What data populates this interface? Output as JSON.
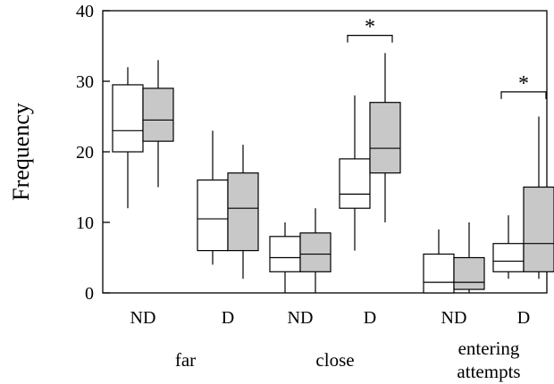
{
  "chart_data": {
    "type": "box",
    "title": "",
    "xlabel": "",
    "ylabel": "Frequency",
    "ylim": [
      0,
      40
    ],
    "yticks": [
      0,
      10,
      20,
      30,
      40
    ],
    "grid": false,
    "legend": "none",
    "fills": {
      "white": "#ffffff",
      "gray": "#c8c8c8"
    },
    "groups": [
      {
        "label_lines": [
          "far"
        ],
        "conditions": [
          {
            "label": "ND",
            "boxes": [
              {
                "fill": "white",
                "min": 12,
                "q1": 20,
                "median": 23,
                "q3": 29.5,
                "max": 32
              },
              {
                "fill": "gray",
                "min": 15,
                "q1": 21.5,
                "median": 24.5,
                "q3": 29,
                "max": 33
              }
            ]
          },
          {
            "label": "D",
            "boxes": [
              {
                "fill": "white",
                "min": 4,
                "q1": 6,
                "median": 10.5,
                "q3": 16,
                "max": 23
              },
              {
                "fill": "gray",
                "min": 2,
                "q1": 6,
                "median": 12,
                "q3": 17,
                "max": 21
              }
            ]
          }
        ]
      },
      {
        "label_lines": [
          "close"
        ],
        "conditions": [
          {
            "label": "ND",
            "boxes": [
              {
                "fill": "white",
                "min": 0,
                "q1": 3,
                "median": 5,
                "q3": 8,
                "max": 10
              },
              {
                "fill": "gray",
                "min": 0,
                "q1": 3,
                "median": 5.5,
                "q3": 8.5,
                "max": 12
              }
            ]
          },
          {
            "label": "D",
            "boxes": [
              {
                "fill": "white",
                "min": 6,
                "q1": 12,
                "median": 14,
                "q3": 19,
                "max": 28
              },
              {
                "fill": "gray",
                "min": 10,
                "q1": 17,
                "median": 20.5,
                "q3": 27,
                "max": 34
              }
            ],
            "significance": {
              "symbol": "*",
              "bracket_y": 36.5
            }
          }
        ]
      },
      {
        "label_lines": [
          "entering",
          "attempts"
        ],
        "conditions": [
          {
            "label": "ND",
            "boxes": [
              {
                "fill": "white",
                "min": 0,
                "q1": 0,
                "median": 1.5,
                "q3": 5.5,
                "max": 9
              },
              {
                "fill": "gray",
                "min": 0,
                "q1": 0.5,
                "median": 1.5,
                "q3": 5,
                "max": 10
              }
            ]
          },
          {
            "label": "D",
            "boxes": [
              {
                "fill": "white",
                "min": 2,
                "q1": 3,
                "median": 4.5,
                "q3": 7,
                "max": 11
              },
              {
                "fill": "gray",
                "min": 2,
                "q1": 3,
                "median": 7,
                "q3": 15,
                "max": 25
              }
            ],
            "significance": {
              "symbol": "*",
              "bracket_y": 28.5
            }
          }
        ]
      }
    ]
  }
}
